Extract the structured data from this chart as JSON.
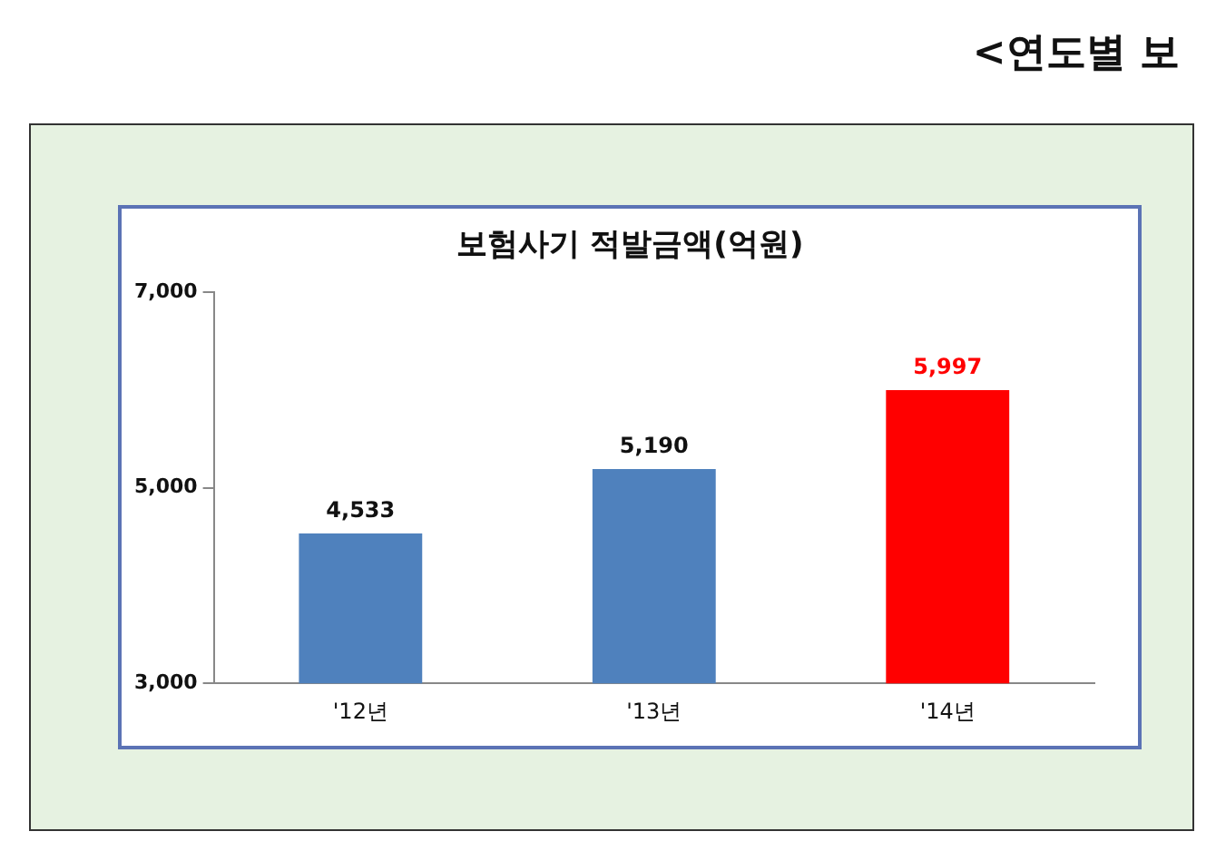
{
  "chart_data": {
    "type": "bar",
    "title": "보험사기 적발금액(억원)",
    "annotations": [
      "<연도별 보"
    ],
    "categories": [
      "'12년",
      "'13년",
      "'14년"
    ],
    "values": [
      4533,
      5190,
      5997
    ],
    "value_labels": [
      "4,533",
      "5,190",
      "5,997"
    ],
    "colors": [
      "#4f81bd",
      "#4f81bd",
      "#ff0000"
    ],
    "ylim": [
      3000,
      7000
    ],
    "yticks": [
      {
        "value": 3000,
        "label": "3,000"
      },
      {
        "value": 5000,
        "label": "5,000"
      },
      {
        "value": 7000,
        "label": "7,000"
      }
    ],
    "grid": false,
    "legend": false
  }
}
